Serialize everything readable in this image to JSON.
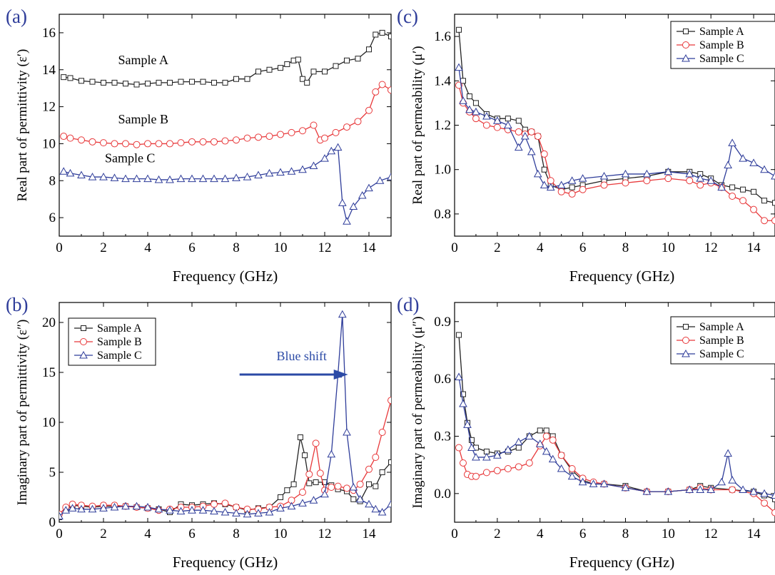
{
  "chart_data": [
    {
      "panel": "(a)",
      "type": "line",
      "xlabel": "Frequency (GHz)",
      "ylabel": "Real part of permittivity (ε′)",
      "xlim": [
        0,
        15
      ],
      "ylim": [
        5,
        17
      ],
      "xticks": [
        0,
        2,
        4,
        6,
        8,
        10,
        12,
        14
      ],
      "yticks": [
        6,
        8,
        10,
        12,
        14,
        16
      ],
      "legend": null,
      "annotations": [
        {
          "text": "Sample A",
          "x": 3.8,
          "y": 14.3
        },
        {
          "text": "Sample B",
          "x": 3.8,
          "y": 11.1
        },
        {
          "text": "Sample C",
          "x": 3.2,
          "y": 9.0
        }
      ],
      "series": [
        {
          "name": "Sample A",
          "color": "#222222",
          "marker": "square",
          "x": [
            0.2,
            0.5,
            1,
            1.5,
            2,
            2.5,
            3,
            3.5,
            4,
            4.5,
            5,
            5.5,
            6,
            6.5,
            7,
            7.5,
            8,
            8.5,
            9,
            9.5,
            10,
            10.3,
            10.6,
            10.8,
            11,
            11.2,
            11.5,
            12,
            12.5,
            13,
            13.5,
            14,
            14.3,
            14.6,
            15
          ],
          "y": [
            13.6,
            13.55,
            13.4,
            13.35,
            13.3,
            13.3,
            13.25,
            13.2,
            13.25,
            13.3,
            13.3,
            13.35,
            13.35,
            13.35,
            13.3,
            13.3,
            13.5,
            13.5,
            13.9,
            14.0,
            14.1,
            14.3,
            14.5,
            14.55,
            13.5,
            13.3,
            13.9,
            13.9,
            14.2,
            14.5,
            14.6,
            15.1,
            15.9,
            16.0,
            15.8
          ]
        },
        {
          "name": "Sample B",
          "color": "#e8383a",
          "marker": "circle",
          "x": [
            0.2,
            0.5,
            1,
            1.5,
            2,
            2.5,
            3,
            3.5,
            4,
            4.5,
            5,
            5.5,
            6,
            6.5,
            7,
            7.5,
            8,
            8.5,
            9,
            9.5,
            10,
            10.5,
            11,
            11.5,
            11.8,
            12,
            12.5,
            13,
            13.5,
            14,
            14.3,
            14.6,
            15
          ],
          "y": [
            10.4,
            10.3,
            10.2,
            10.1,
            10.05,
            10.0,
            10.0,
            9.95,
            10.0,
            10.0,
            10.0,
            10.05,
            10.1,
            10.1,
            10.1,
            10.15,
            10.2,
            10.3,
            10.35,
            10.4,
            10.5,
            10.6,
            10.7,
            11.0,
            10.2,
            10.3,
            10.6,
            10.9,
            11.2,
            11.8,
            12.8,
            13.2,
            12.9
          ]
        },
        {
          "name": "Sample C",
          "color": "#2f3d9a",
          "marker": "triangle",
          "x": [
            0.2,
            0.5,
            1,
            1.5,
            2,
            2.5,
            3,
            3.5,
            4,
            4.5,
            5,
            5.5,
            6,
            6.5,
            7,
            7.5,
            8,
            8.5,
            9,
            9.5,
            10,
            10.5,
            11,
            11.5,
            12,
            12.3,
            12.6,
            12.8,
            13,
            13.3,
            13.7,
            14,
            14.5,
            15
          ],
          "y": [
            8.5,
            8.4,
            8.3,
            8.2,
            8.2,
            8.15,
            8.1,
            8.1,
            8.1,
            8.05,
            8.05,
            8.1,
            8.1,
            8.1,
            8.1,
            8.1,
            8.15,
            8.2,
            8.3,
            8.4,
            8.45,
            8.5,
            8.6,
            8.8,
            9.2,
            9.6,
            9.8,
            6.8,
            5.8,
            6.6,
            7.2,
            7.6,
            8.0,
            8.2
          ]
        }
      ]
    },
    {
      "panel": "(b)",
      "type": "line",
      "xlabel": "Frequency (GHz)",
      "ylabel": "Imaginary part of permittivity (ε″)",
      "xlim": [
        0,
        15
      ],
      "ylim": [
        0,
        22
      ],
      "xticks": [
        0,
        2,
        4,
        6,
        8,
        10,
        12,
        14
      ],
      "yticks": [
        0,
        5,
        10,
        15,
        20
      ],
      "legend": "top-left",
      "annotations": [
        {
          "text": "Blue shift",
          "x": 8.7,
          "y": 15.5,
          "arrow": true
        }
      ],
      "series": [
        {
          "name": "Sample A",
          "color": "#222222",
          "marker": "square",
          "x": [
            0,
            0.3,
            0.6,
            1,
            1.5,
            2,
            2.5,
            3,
            3.5,
            4,
            4.5,
            5,
            5.5,
            6,
            6.5,
            7,
            7.5,
            8,
            8.5,
            9,
            9.5,
            10,
            10.3,
            10.6,
            10.9,
            11.1,
            11.3,
            11.6,
            12,
            12.3,
            12.6,
            13,
            13.3,
            13.6,
            14,
            14.3,
            14.6,
            15
          ],
          "y": [
            0.5,
            1.3,
            1.7,
            1.6,
            1.5,
            1.6,
            1.6,
            1.6,
            1.5,
            1.4,
            1.3,
            1.0,
            1.8,
            1.7,
            1.8,
            1.9,
            1.8,
            1.5,
            1.2,
            1.4,
            1.5,
            2.5,
            3.2,
            3.8,
            8.5,
            6.7,
            3.9,
            4.0,
            4.0,
            3.7,
            3.3,
            3.1,
            2.3,
            2.1,
            3.8,
            3.6,
            5.0,
            6.0
          ]
        },
        {
          "name": "Sample B",
          "color": "#e8383a",
          "marker": "circle",
          "x": [
            0,
            0.3,
            0.6,
            1,
            1.5,
            2,
            2.5,
            3,
            3.5,
            4,
            4.5,
            5,
            5.5,
            6,
            6.5,
            7,
            7.5,
            8,
            8.5,
            9,
            9.5,
            10,
            10.5,
            11,
            11.3,
            11.6,
            11.8,
            12,
            12.3,
            12.6,
            13,
            13.3,
            13.6,
            14,
            14.3,
            14.6,
            15
          ],
          "y": [
            0.8,
            1.5,
            1.8,
            1.7,
            1.6,
            1.7,
            1.7,
            1.6,
            1.5,
            1.4,
            1.2,
            1.3,
            1.5,
            1.5,
            1.6,
            1.8,
            1.9,
            1.5,
            1.3,
            1.3,
            1.5,
            1.6,
            2.2,
            3.0,
            4.8,
            7.9,
            4.9,
            3.2,
            3.5,
            3.6,
            3.4,
            3.2,
            3.8,
            5.3,
            6.5,
            9.0,
            12.2
          ]
        },
        {
          "name": "Sample C",
          "color": "#2f3d9a",
          "marker": "triangle",
          "x": [
            0,
            0.3,
            0.6,
            1,
            1.5,
            2,
            2.5,
            3,
            3.5,
            4,
            4.5,
            5,
            5.5,
            6,
            6.5,
            7,
            7.5,
            8,
            8.5,
            9,
            9.5,
            10,
            10.5,
            11,
            11.5,
            12,
            12.3,
            12.6,
            12.8,
            13,
            13.3,
            13.6,
            14,
            14.3,
            14.6,
            15
          ],
          "y": [
            0.6,
            1.2,
            1.4,
            1.3,
            1.3,
            1.4,
            1.5,
            1.6,
            1.6,
            1.5,
            1.3,
            1.2,
            1.1,
            1.2,
            1.2,
            1.1,
            1.0,
            0.9,
            0.8,
            0.9,
            1.0,
            1.4,
            1.6,
            1.9,
            2.2,
            2.8,
            6.8,
            14.8,
            20.8,
            9.0,
            3.5,
            2.3,
            1.8,
            1.3,
            1.0,
            1.8
          ]
        }
      ]
    },
    {
      "panel": "(c)",
      "type": "line",
      "xlabel": "Frequency (GHz)",
      "ylabel": "Real part of permeability (μ′)",
      "xlim": [
        0,
        15
      ],
      "ylim": [
        0.7,
        1.7
      ],
      "xticks": [
        0,
        2,
        4,
        6,
        8,
        10,
        12,
        14
      ],
      "yticks": [
        0.8,
        1.0,
        1.2,
        1.4,
        1.6
      ],
      "legend": "top-right",
      "annotations": [],
      "series": [
        {
          "name": "Sample A",
          "color": "#222222",
          "marker": "square",
          "x": [
            0.2,
            0.4,
            0.7,
            1,
            1.5,
            2,
            2.5,
            3,
            3.3,
            3.6,
            3.9,
            4.2,
            4.5,
            5,
            5.5,
            6,
            7,
            8,
            9,
            10,
            11,
            11.5,
            12,
            12.5,
            13,
            13.5,
            14,
            14.5,
            15
          ],
          "y": [
            1.63,
            1.4,
            1.33,
            1.3,
            1.25,
            1.23,
            1.23,
            1.22,
            1.18,
            1.17,
            1.15,
            1.0,
            0.93,
            0.91,
            0.92,
            0.93,
            0.95,
            0.96,
            0.97,
            0.99,
            0.99,
            0.98,
            0.96,
            0.93,
            0.92,
            0.91,
            0.9,
            0.86,
            0.85
          ]
        },
        {
          "name": "Sample B",
          "color": "#e8383a",
          "marker": "circle",
          "x": [
            0.2,
            0.4,
            0.7,
            1,
            1.5,
            2,
            2.5,
            3,
            3.3,
            3.6,
            3.9,
            4.2,
            4.5,
            5,
            5.5,
            6,
            7,
            8,
            9,
            10,
            11,
            11.5,
            12,
            12.5,
            13,
            13.5,
            14,
            14.5,
            15
          ],
          "y": [
            1.38,
            1.3,
            1.26,
            1.23,
            1.2,
            1.19,
            1.18,
            1.17,
            1.16,
            1.17,
            1.15,
            1.07,
            0.95,
            0.9,
            0.89,
            0.91,
            0.93,
            0.94,
            0.95,
            0.96,
            0.95,
            0.93,
            0.94,
            0.92,
            0.88,
            0.86,
            0.82,
            0.77,
            0.77
          ]
        },
        {
          "name": "Sample C",
          "color": "#2f3d9a",
          "marker": "triangle",
          "x": [
            0.2,
            0.4,
            0.7,
            1,
            1.5,
            2,
            2.5,
            3,
            3.3,
            3.6,
            3.9,
            4.2,
            4.5,
            5,
            5.5,
            6,
            7,
            8,
            9,
            10,
            11,
            11.5,
            12,
            12.5,
            12.8,
            13,
            13.5,
            14,
            14.5,
            15
          ],
          "y": [
            1.46,
            1.31,
            1.27,
            1.26,
            1.24,
            1.22,
            1.2,
            1.1,
            1.15,
            1.08,
            0.98,
            0.93,
            0.92,
            0.93,
            0.95,
            0.96,
            0.97,
            0.98,
            0.98,
            0.99,
            0.98,
            0.96,
            0.95,
            0.92,
            1.02,
            1.12,
            1.05,
            1.03,
            1.0,
            0.97
          ]
        }
      ]
    },
    {
      "panel": "(d)",
      "type": "line",
      "xlabel": "Frequency (GHz)",
      "ylabel": "Imaginary part of permeability (μ″)",
      "xlim": [
        0,
        15
      ],
      "ylim": [
        -0.15,
        1.0
      ],
      "xticks": [
        0,
        2,
        4,
        6,
        8,
        10,
        12,
        14
      ],
      "yticks": [
        0.0,
        0.3,
        0.6,
        0.9
      ],
      "legend": "top-right",
      "annotations": [],
      "series": [
        {
          "name": "Sample A",
          "color": "#222222",
          "marker": "square",
          "x": [
            0.2,
            0.4,
            0.6,
            0.8,
            1,
            1.5,
            2,
            2.5,
            3,
            3.5,
            4,
            4.3,
            4.6,
            5,
            5.5,
            6,
            6.5,
            7,
            8,
            9,
            10,
            11,
            11.5,
            12,
            13,
            14,
            14.5,
            15
          ],
          "y": [
            0.83,
            0.52,
            0.37,
            0.28,
            0.24,
            0.22,
            0.21,
            0.22,
            0.24,
            0.3,
            0.33,
            0.33,
            0.3,
            0.2,
            0.12,
            0.07,
            0.05,
            0.05,
            0.04,
            0.01,
            0.01,
            0.02,
            0.04,
            0.03,
            0.02,
            0.01,
            -0.01,
            -0.03
          ]
        },
        {
          "name": "Sample B",
          "color": "#e8383a",
          "marker": "circle",
          "x": [
            0.2,
            0.4,
            0.6,
            0.8,
            1,
            1.5,
            2,
            2.5,
            3,
            3.5,
            4,
            4.3,
            4.6,
            5,
            5.5,
            6,
            6.5,
            7,
            8,
            9,
            10,
            11,
            11.5,
            12,
            13,
            14,
            14.5,
            15
          ],
          "y": [
            0.24,
            0.16,
            0.1,
            0.09,
            0.09,
            0.11,
            0.12,
            0.13,
            0.14,
            0.16,
            0.25,
            0.3,
            0.28,
            0.2,
            0.13,
            0.08,
            0.06,
            0.05,
            0.03,
            0.01,
            0.01,
            0.02,
            0.03,
            0.02,
            0.02,
            0.0,
            -0.05,
            -0.1
          ]
        },
        {
          "name": "Sample C",
          "color": "#2f3d9a",
          "marker": "triangle",
          "x": [
            0.2,
            0.4,
            0.6,
            0.8,
            1,
            1.5,
            2,
            2.5,
            3,
            3.5,
            4,
            4.3,
            4.6,
            5,
            5.5,
            6,
            6.5,
            7,
            8,
            9,
            10,
            11,
            11.5,
            12,
            12.5,
            12.8,
            13,
            13.5,
            14,
            14.5,
            15
          ],
          "y": [
            0.61,
            0.47,
            0.36,
            0.24,
            0.19,
            0.19,
            0.2,
            0.23,
            0.27,
            0.3,
            0.26,
            0.22,
            0.18,
            0.13,
            0.09,
            0.06,
            0.05,
            0.05,
            0.03,
            0.01,
            0.01,
            0.02,
            0.02,
            0.02,
            0.06,
            0.21,
            0.07,
            0.02,
            0.01,
            0.0,
            -0.01
          ]
        }
      ]
    }
  ]
}
